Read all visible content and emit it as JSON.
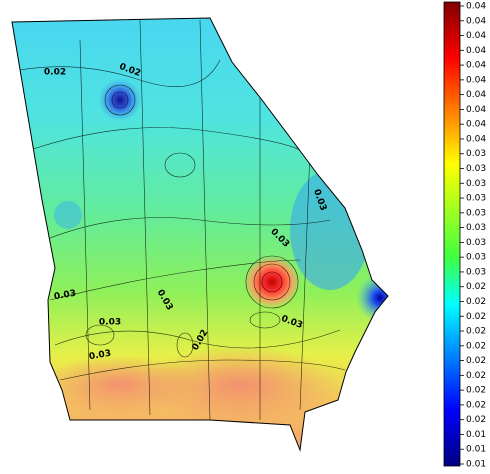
{
  "map": {
    "contour_labels": [
      "0.02",
      "0.02",
      "0.03",
      "0.03",
      "0.03",
      "0.03",
      "0.03",
      "0.02",
      "0.03",
      "0.03"
    ],
    "colorbar": {
      "labels": [
        "0.04",
        "0.04",
        "0.04",
        "0.04",
        "0.04",
        "0.04",
        "0.04",
        "0.04",
        "0.04",
        "0.04",
        "0.03",
        "0.03",
        "0.03",
        "0.03",
        "0.03",
        "0.03",
        "0.03",
        "0.03",
        "0.03",
        "0.02",
        "0.02",
        "0.02",
        "0.02",
        "0.02",
        "0.02",
        "0.02",
        "0.02",
        "0.02",
        "0.02",
        "0.01",
        "0.01",
        "0.01"
      ]
    }
  }
}
